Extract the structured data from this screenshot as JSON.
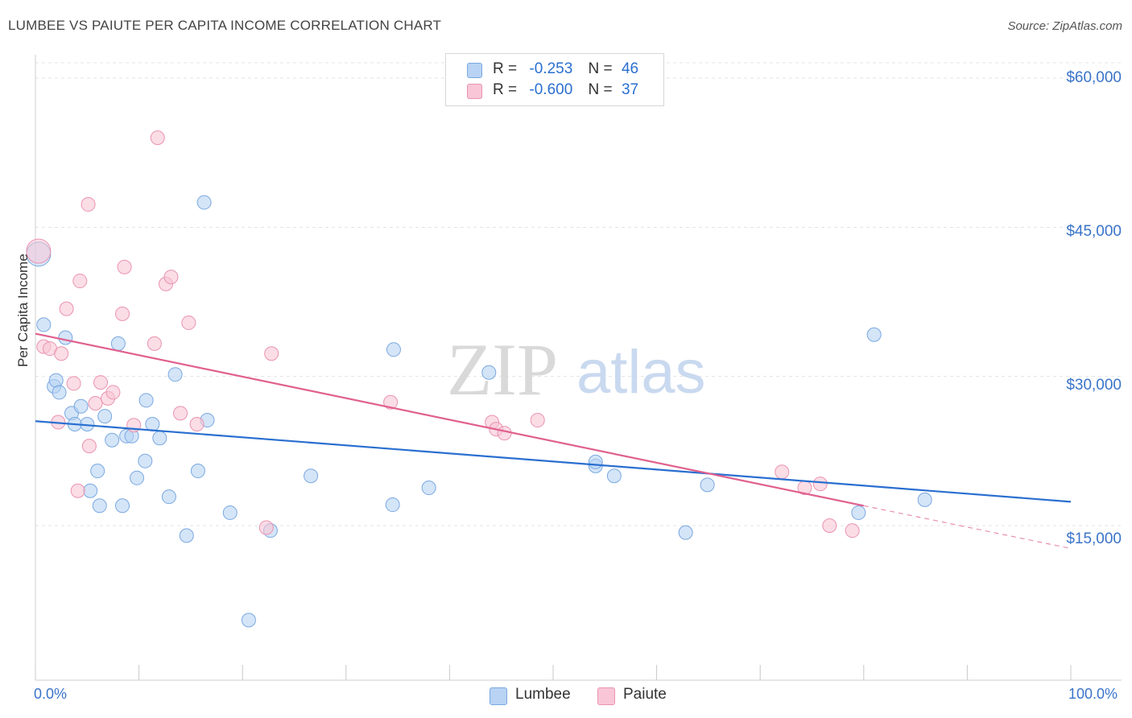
{
  "header": {
    "title": "LUMBEE VS PAIUTE PER CAPITA INCOME CORRELATION CHART",
    "source": "Source: ZipAtlas.com"
  },
  "watermark": {
    "zip": "ZIP",
    "atlas": "atlas"
  },
  "legend": {
    "rows": [
      {
        "r_label": "R =",
        "r_value": "-0.253",
        "n_label": "N =",
        "n_value": "46",
        "color": "#a9c8f0"
      },
      {
        "r_label": "R =",
        "r_value": "-0.600",
        "n_label": "N =",
        "n_value": "37",
        "color": "#f6b9cd"
      }
    ]
  },
  "bottom_legend": {
    "lumbee": "Lumbee",
    "paiute": "Paiute"
  },
  "axes": {
    "ylabel": "Per Capita Income",
    "x_left": "0.0%",
    "x_right": "100.0%",
    "y_ticks": [
      "$60,000",
      "$45,000",
      "$30,000",
      "$15,000"
    ]
  },
  "colors": {
    "lumbee_fill": "#b8d3f3",
    "lumbee_stroke": "#7aa8e0",
    "lumbee_line": "#2a6fd0",
    "paiute_fill": "#f8c6d6",
    "paiute_stroke": "#ea93b1",
    "paiute_line": "#e0608e",
    "grid": "#e3e3e3"
  },
  "chart_data": {
    "type": "scatter",
    "xlim": [
      0,
      100
    ],
    "ylim": [
      0,
      63000
    ],
    "grid": true,
    "series": [
      {
        "name": "Lumbee",
        "points": [
          [
            0.3,
            42300
          ],
          [
            0.8,
            35200
          ],
          [
            1.8,
            29000
          ],
          [
            2.0,
            29600
          ],
          [
            2.3,
            28400
          ],
          [
            2.9,
            33900
          ],
          [
            3.5,
            26300
          ],
          [
            3.8,
            25200
          ],
          [
            4.4,
            27000
          ],
          [
            5.0,
            25200
          ],
          [
            5.3,
            18500
          ],
          [
            6.0,
            20500
          ],
          [
            6.2,
            17000
          ],
          [
            6.7,
            26000
          ],
          [
            7.4,
            23600
          ],
          [
            8.0,
            33300
          ],
          [
            8.4,
            17000
          ],
          [
            8.8,
            24000
          ],
          [
            9.3,
            24000
          ],
          [
            9.8,
            19800
          ],
          [
            10.6,
            21500
          ],
          [
            10.7,
            27600
          ],
          [
            11.3,
            25200
          ],
          [
            12.0,
            23800
          ],
          [
            12.9,
            17900
          ],
          [
            13.5,
            30200
          ],
          [
            14.6,
            14000
          ],
          [
            15.7,
            20500
          ],
          [
            16.3,
            47500
          ],
          [
            16.6,
            25600
          ],
          [
            18.8,
            16300
          ],
          [
            20.6,
            5500
          ],
          [
            22.7,
            14500
          ],
          [
            26.6,
            20000
          ],
          [
            34.6,
            32700
          ],
          [
            34.5,
            17100
          ],
          [
            38.0,
            18800
          ],
          [
            43.8,
            30400
          ],
          [
            54.1,
            21000
          ],
          [
            54.1,
            21400
          ],
          [
            55.9,
            20000
          ],
          [
            62.8,
            14300
          ],
          [
            64.9,
            19100
          ],
          [
            79.5,
            16300
          ],
          [
            81.0,
            34200
          ],
          [
            85.9,
            17600
          ]
        ],
        "trend": {
          "x": [
            0,
            100
          ],
          "y": [
            25500,
            17400
          ]
        }
      },
      {
        "name": "Paiute",
        "points": [
          [
            0.3,
            42600
          ],
          [
            0.8,
            33000
          ],
          [
            1.4,
            32800
          ],
          [
            2.2,
            25400
          ],
          [
            2.5,
            32300
          ],
          [
            3.0,
            36800
          ],
          [
            3.7,
            29300
          ],
          [
            4.1,
            18500
          ],
          [
            4.3,
            39600
          ],
          [
            5.1,
            47300
          ],
          [
            5.2,
            23000
          ],
          [
            5.8,
            27300
          ],
          [
            6.3,
            29400
          ],
          [
            7.0,
            27800
          ],
          [
            7.5,
            28400
          ],
          [
            8.4,
            36300
          ],
          [
            8.6,
            41000
          ],
          [
            9.5,
            25100
          ],
          [
            11.5,
            33300
          ],
          [
            11.8,
            54000
          ],
          [
            12.6,
            39300
          ],
          [
            13.1,
            40000
          ],
          [
            14.0,
            26300
          ],
          [
            14.8,
            35400
          ],
          [
            15.6,
            25200
          ],
          [
            22.3,
            14800
          ],
          [
            22.8,
            32300
          ],
          [
            34.3,
            27400
          ],
          [
            44.1,
            25400
          ],
          [
            44.5,
            24700
          ],
          [
            45.3,
            24300
          ],
          [
            48.5,
            25600
          ],
          [
            72.1,
            20400
          ],
          [
            74.3,
            18800
          ],
          [
            75.8,
            19200
          ],
          [
            76.7,
            15000
          ],
          [
            78.9,
            14500
          ]
        ],
        "trend": {
          "x": [
            0,
            80
          ],
          "y": [
            34300,
            17000
          ]
        },
        "trend_dashed": {
          "x": [
            80,
            100
          ],
          "y": [
            17000,
            12700
          ]
        }
      }
    ]
  }
}
